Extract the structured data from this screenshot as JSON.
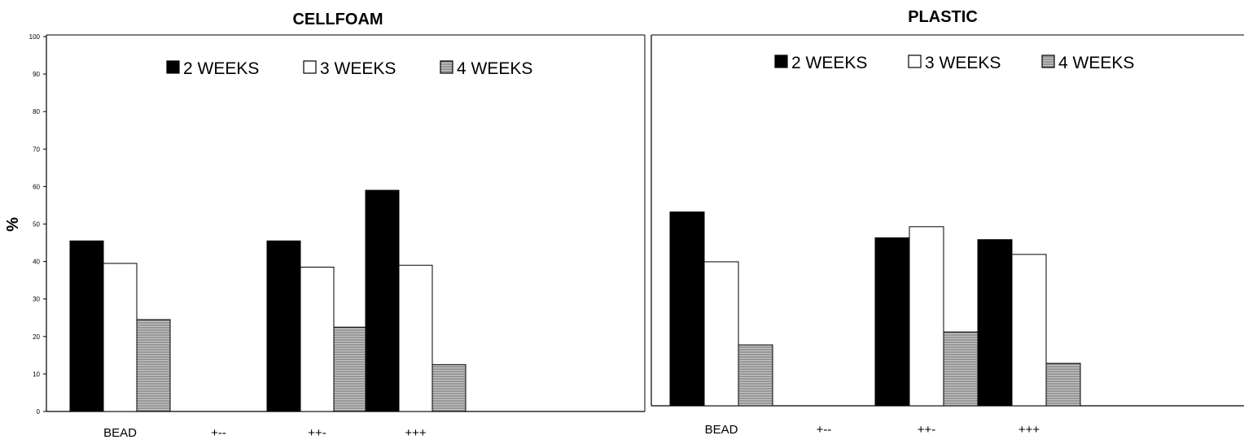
{
  "chart_data": [
    {
      "type": "bar",
      "title": "CELLFOAM",
      "xlabel": "",
      "ylabel": "%",
      "ylim": [
        0,
        100
      ],
      "yticks": [
        0,
        10,
        20,
        30,
        40,
        50,
        60,
        70,
        80,
        90,
        100
      ],
      "categories": [
        "BEAD",
        "+--",
        "++-",
        "+++"
      ],
      "series": [
        {
          "name": "2 WEEKS",
          "values": [
            45.5,
            0,
            45.5,
            59
          ]
        },
        {
          "name": "3 WEEKS",
          "values": [
            39.5,
            0,
            38.5,
            39
          ]
        },
        {
          "name": "4 WEEKS",
          "values": [
            24.5,
            0,
            22.5,
            12.5
          ]
        }
      ],
      "legend": "top",
      "grid": false
    },
    {
      "type": "bar",
      "title": "PLASTIC",
      "xlabel": "",
      "ylabel": "",
      "ylim": [
        0,
        100
      ],
      "categories": [
        "BEAD",
        "+--",
        "++-",
        "+++"
      ],
      "series": [
        {
          "name": "2 WEEKS",
          "values": [
            52.5,
            0,
            45.5,
            45
          ]
        },
        {
          "name": "3 WEEKS",
          "values": [
            39,
            0,
            48.5,
            41
          ]
        },
        {
          "name": "4 WEEKS",
          "values": [
            16.5,
            0,
            20,
            11.5
          ]
        }
      ],
      "legend": "top",
      "grid": false
    }
  ],
  "colors": {
    "series_fill": [
      "#000000",
      "#ffffff",
      "#a8a8a8"
    ],
    "axis": "#000000"
  }
}
